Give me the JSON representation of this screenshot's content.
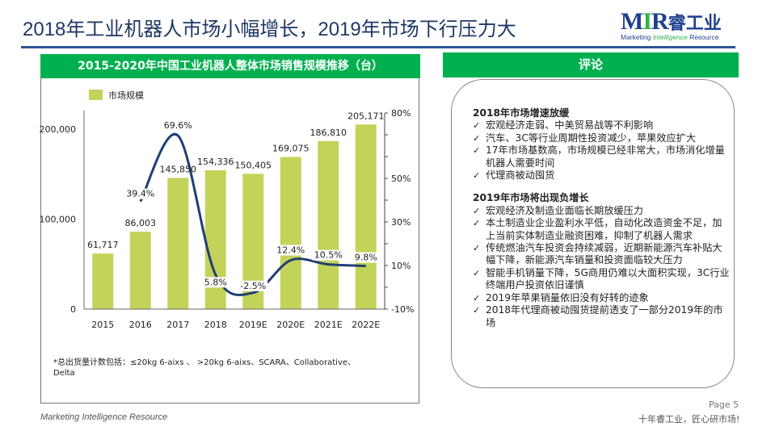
{
  "header": {
    "title": "2018年工业机器人市场小幅增长，2019年市场下行压力大",
    "logo": {
      "brand": "MIR",
      "brand_cn": "睿工业",
      "tagline_parts": [
        "Marketing ",
        "Intelligence",
        " Resource"
      ]
    }
  },
  "left_panel": {
    "title": "2015-2020年中国工业机器人整体市场销售规模推移（台）",
    "note": "*总出货量计数包括：≤20kg 6-aixs 、 >20kg 6-aixs、SCARA、Collaborative、Delta"
  },
  "chart_data": {
    "type": "bar+line",
    "categories": [
      "2015",
      "2016",
      "2017",
      "2018",
      "2019E",
      "2020E",
      "2021E",
      "2022E"
    ],
    "series": [
      {
        "name": "市场规模",
        "type": "bar",
        "axis": "left",
        "color": "#c3d35a",
        "values": [
          61717,
          86003,
          145850,
          154336,
          150405,
          169075,
          186810,
          205171
        ],
        "labels": [
          "61,717",
          "86,003",
          "145,850",
          "154,336",
          "150,405",
          "169,075",
          "186,810",
          "205,171"
        ]
      },
      {
        "type": "line",
        "axis": "right",
        "color": "#1f3f73",
        "values": [
          null,
          39.4,
          69.6,
          5.8,
          -2.5,
          12.4,
          10.5,
          9.8
        ],
        "labels": [
          "",
          "39.4%",
          "69.6%",
          "5.8%",
          "-2.5%",
          "12.4%",
          "10.5%",
          "9.8%"
        ]
      }
    ],
    "y_left": {
      "range": [
        0,
        218000
      ],
      "ticks": [
        0,
        100000,
        200000
      ],
      "tick_labels": [
        "0",
        "100,000",
        "200,000"
      ]
    },
    "y_right": {
      "range": [
        -10,
        80
      ],
      "ticks": [
        -10,
        10,
        30,
        50,
        80
      ],
      "tick_labels": [
        "-10%",
        "10%",
        "30%",
        "50%",
        "80%"
      ]
    },
    "legend": {
      "placement": "top-left",
      "entries": [
        "市场规模"
      ]
    },
    "grid": false
  },
  "right_panel": {
    "title": "评论",
    "sections": [
      {
        "heading": "2018年市场增速放缓",
        "items": [
          "宏观经济走弱、中美贸易战等不利影响",
          "汽车、3C等行业周期性投资减少，苹果效应扩大",
          "17年市场基数高，市场规模已经非常大，市场消化增量机器人需要时间",
          "代理商被动囤货"
        ]
      },
      {
        "heading": "2019年市场将出现负增长",
        "items": [
          "宏观经济及制造业面临长期放缓压力",
          "本土制造业企业盈利水平低，自动化改造资金不足，加上当前实体制造业融资困难，抑制了机器人需求",
          "传统燃油汽车投资会持续减弱，近期新能源汽车补贴大幅下降，新能源汽车销量和投资面临较大压力",
          "智能手机销量下降，5G商用仍难以大面积实现，3C行业终端用户投资依旧谨慎",
          "2019年苹果销量依旧没有好转的迹象",
          "2018年代理商被动囤货提前透支了一部分2019年的市场"
        ]
      }
    ],
    "check_icon": "✓"
  },
  "footer": {
    "left": "Marketing Intelligence Resource",
    "page": "Page 5",
    "slogan": "十年睿工业，匠心研市场!"
  }
}
